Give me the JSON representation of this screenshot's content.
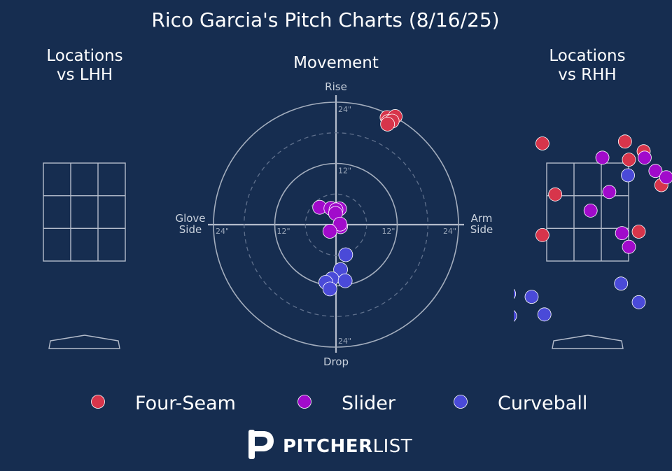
{
  "chart_data": {
    "type": "scatter",
    "title": "Rico Garcia's Pitch Charts (8/16/25)",
    "colors": {
      "Four-Seam": "#d7354b",
      "Slider": "#a10bcb",
      "Curveball": "#4a4ad8",
      "background": "#162d50"
    },
    "legend": {
      "placement": "bottom",
      "entries": [
        "Four-Seam",
        "Slider",
        "Curveball"
      ]
    },
    "movement": {
      "title": "Movement",
      "labels": {
        "top": "Rise",
        "bottom": "Drop",
        "left": "Glove\nSide",
        "right": "Arm\nSide"
      },
      "rings": [
        {
          "radius": 6,
          "dashed": true,
          "label": ""
        },
        {
          "radius": 12,
          "dashed": false,
          "label": "12\""
        },
        {
          "radius": 18,
          "dashed": true,
          "label": ""
        },
        {
          "radius": 24,
          "dashed": false,
          "label": "24\""
        }
      ],
      "range": [
        -24,
        24
      ],
      "series": [
        {
          "name": "Four-Seam",
          "points": [
            [
              10.0,
              21.0
            ],
            [
              11.6,
              21.2
            ],
            [
              10.2,
              20.2
            ],
            [
              11.0,
              20.3
            ],
            [
              10.1,
              19.7
            ]
          ]
        },
        {
          "name": "Slider",
          "points": [
            [
              -3.2,
              3.4
            ],
            [
              -1.0,
              3.2
            ],
            [
              0.7,
              3.1
            ],
            [
              0.0,
              2.9
            ],
            [
              -0.1,
              2.2
            ],
            [
              0.9,
              -0.4
            ],
            [
              0.8,
              0.1
            ],
            [
              -1.2,
              -1.3
            ]
          ]
        },
        {
          "name": "Curveball",
          "points": [
            [
              1.9,
              -5.9
            ],
            [
              0.9,
              -8.8
            ],
            [
              -0.8,
              -10.6
            ],
            [
              -2.0,
              -11.3
            ],
            [
              -1.2,
              -12.6
            ],
            [
              1.8,
              -11.0
            ]
          ]
        }
      ]
    },
    "locations_lhh": {
      "title": "Locations\nvs LHH",
      "series": []
    },
    "locations_rhh": {
      "title": "Locations\nvs RHH",
      "series": [
        {
          "name": "Four-Seam",
          "points": [
            [
              -0.46,
              3.9
            ],
            [
              0.38,
              3.94
            ],
            [
              0.42,
              3.57
            ],
            [
              0.57,
              3.74
            ],
            [
              0.75,
              3.05
            ],
            [
              -0.33,
              2.86
            ],
            [
              0.52,
              2.1
            ],
            [
              -0.46,
              2.03
            ]
          ]
        },
        {
          "name": "Slider",
          "points": [
            [
              0.58,
              3.61
            ],
            [
              0.69,
              3.34
            ],
            [
              1.02,
              3.1
            ],
            [
              0.8,
              3.21
            ],
            [
              0.15,
              3.61
            ],
            [
              0.22,
              2.91
            ],
            [
              0.03,
              2.53
            ],
            [
              0.35,
              2.07
            ],
            [
              0.42,
              1.79
            ],
            [
              -0.9,
              0.98
            ]
          ]
        },
        {
          "name": "Curveball",
          "points": [
            [
              0.41,
              3.25
            ],
            [
              1.09,
              1.42
            ],
            [
              0.34,
              1.04
            ],
            [
              -0.8,
              0.83
            ],
            [
              -0.57,
              0.77
            ],
            [
              0.52,
              0.66
            ],
            [
              -0.44,
              0.41
            ],
            [
              -0.79,
              0.38
            ]
          ]
        }
      ]
    }
  },
  "branding": {
    "name_bold": "PITCHER",
    "name_light": "LIST",
    "logo_icon": "pitcherlist-p-logo"
  }
}
